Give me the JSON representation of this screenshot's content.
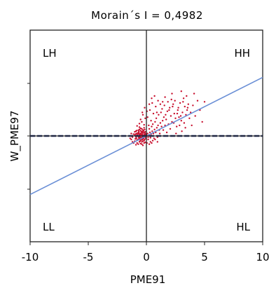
{
  "chart_data": {
    "type": "scatter",
    "title": "Morain´s I = 0,4982",
    "xlabel": "PME91",
    "ylabel": "W_PME97",
    "xlim": [
      -10,
      10
    ],
    "ylim": [
      -9,
      9
    ],
    "x_ticks": [
      "-10",
      "-5",
      "0",
      "5",
      "10"
    ],
    "quadrant_labels": {
      "top_left": "LH",
      "top_right": "HH",
      "bottom_left": "LL",
      "bottom_right": "HL"
    },
    "regression_line": {
      "slope": 0.4982,
      "intercept": 0
    },
    "mean_reference_line_y": 0,
    "colors": {
      "points": "#c8102e",
      "regression": "#6a8fd6",
      "reference": "#1f2f6e",
      "axes": "#222222"
    },
    "grid": false,
    "legend": "none",
    "points": [
      [
        -0.3,
        0.0
      ],
      [
        -0.5,
        -0.1
      ],
      [
        -0.2,
        0.1
      ],
      [
        -0.6,
        0.05
      ],
      [
        -0.4,
        -0.15
      ],
      [
        -0.1,
        0.0
      ],
      [
        -0.7,
        -0.05
      ],
      [
        -0.35,
        0.12
      ],
      [
        -0.55,
        0.15
      ],
      [
        -0.25,
        -0.2
      ],
      [
        -0.45,
        0.08
      ],
      [
        -0.15,
        -0.08
      ],
      [
        -0.65,
        0.18
      ],
      [
        -0.8,
        0.1
      ],
      [
        -0.3,
        -0.25
      ],
      [
        -0.5,
        0.22
      ],
      [
        -0.2,
        0.28
      ],
      [
        -0.4,
        0.3
      ],
      [
        -0.6,
        -0.2
      ],
      [
        -0.75,
        0.25
      ],
      [
        -0.1,
        0.18
      ],
      [
        -0.9,
        -0.1
      ],
      [
        -0.35,
        0.35
      ],
      [
        -0.55,
        -0.3
      ],
      [
        -0.05,
        0.05
      ],
      [
        -0.45,
        -0.35
      ],
      [
        -0.65,
        0.38
      ],
      [
        -0.25,
        0.42
      ],
      [
        -0.85,
        0.2
      ],
      [
        -0.15,
        -0.3
      ],
      [
        -1.0,
        0.05
      ],
      [
        -0.7,
        -0.3
      ],
      [
        -0.3,
        0.5
      ],
      [
        -0.5,
        0.45
      ],
      [
        -0.2,
        -0.4
      ],
      [
        -0.95,
        -0.25
      ],
      [
        -0.4,
        0.6
      ],
      [
        -0.6,
        0.55
      ],
      [
        -0.1,
        0.35
      ],
      [
        -0.8,
        -0.35
      ],
      [
        -1.1,
        0.15
      ],
      [
        -0.3,
        -0.45
      ],
      [
        -0.5,
        0.65
      ],
      [
        -0.7,
        0.48
      ],
      [
        -0.2,
        0.7
      ],
      [
        -1.2,
        -0.1
      ],
      [
        -0.9,
        0.4
      ],
      [
        -0.4,
        -0.5
      ],
      [
        -0.6,
        0.75
      ],
      [
        -0.15,
        0.55
      ],
      [
        0.0,
        0.1
      ],
      [
        0.1,
        0.2
      ],
      [
        0.2,
        0.05
      ],
      [
        0.3,
        0.3
      ],
      [
        0.15,
        -0.1
      ],
      [
        0.4,
        0.15
      ],
      [
        0.5,
        0.4
      ],
      [
        0.25,
        0.6
      ],
      [
        0.6,
        0.2
      ],
      [
        0.35,
        -0.15
      ],
      [
        0.7,
        0.55
      ],
      [
        0.45,
        0.8
      ],
      [
        0.8,
        0.3
      ],
      [
        0.55,
        1.0
      ],
      [
        0.9,
        0.7
      ],
      [
        0.65,
        -0.2
      ],
      [
        1.0,
        0.9
      ],
      [
        0.75,
        1.2
      ],
      [
        1.1,
        0.5
      ],
      [
        0.85,
        1.5
      ],
      [
        1.2,
        1.1
      ],
      [
        0.95,
        -0.1
      ],
      [
        1.3,
        0.8
      ],
      [
        1.05,
        1.8
      ],
      [
        1.4,
        1.3
      ],
      [
        1.15,
        0.2
      ],
      [
        1.5,
        1.6
      ],
      [
        1.25,
        2.0
      ],
      [
        1.6,
        0.9
      ],
      [
        1.35,
        2.3
      ],
      [
        1.7,
        1.4
      ],
      [
        1.45,
        0.5
      ],
      [
        1.8,
        2.1
      ],
      [
        1.55,
        2.6
      ],
      [
        1.9,
        1.0
      ],
      [
        1.65,
        1.8
      ],
      [
        2.0,
        2.4
      ],
      [
        1.75,
        0.3
      ],
      [
        2.1,
        1.7
      ],
      [
        1.85,
        2.9
      ],
      [
        2.2,
        1.2
      ],
      [
        1.95,
        2.2
      ],
      [
        2.3,
        2.7
      ],
      [
        2.05,
        0.6
      ],
      [
        2.4,
        1.9
      ],
      [
        2.15,
        3.1
      ],
      [
        2.5,
        1.5
      ],
      [
        2.25,
        2.5
      ],
      [
        2.6,
        0.8
      ],
      [
        2.35,
        1.1
      ],
      [
        2.7,
        2.2
      ],
      [
        2.45,
        3.0
      ],
      [
        2.8,
        1.6
      ],
      [
        2.55,
        0.2
      ],
      [
        2.9,
        2.8
      ],
      [
        2.65,
        1.9
      ],
      [
        3.0,
        1.3
      ],
      [
        2.75,
        2.4
      ],
      [
        3.1,
        2.0
      ],
      [
        2.85,
        0.9
      ],
      [
        3.2,
        3.2
      ],
      [
        2.95,
        1.7
      ],
      [
        3.3,
        2.5
      ],
      [
        3.05,
        0.4
      ],
      [
        3.4,
        1.8
      ],
      [
        3.15,
        2.9
      ],
      [
        3.5,
        2.2
      ],
      [
        3.25,
        1.1
      ],
      [
        3.6,
        2.7
      ],
      [
        3.35,
        0.7
      ],
      [
        3.7,
        1.5
      ],
      [
        3.45,
        3.4
      ],
      [
        3.8,
        2.0
      ],
      [
        3.55,
        2.4
      ],
      [
        3.9,
        0.9
      ],
      [
        4.0,
        2.6
      ],
      [
        4.2,
        1.7
      ],
      [
        4.4,
        3.0
      ],
      [
        4.6,
        2.2
      ],
      [
        4.8,
        1.2
      ],
      [
        5.0,
        2.9
      ],
      [
        3.0,
        3.8
      ],
      [
        2.2,
        3.6
      ],
      [
        1.6,
        3.3
      ],
      [
        4.1,
        3.6
      ],
      [
        2.7,
        0.0
      ],
      [
        0.2,
        0.9
      ],
      [
        0.4,
        1.3
      ],
      [
        0.1,
        1.6
      ],
      [
        0.6,
        1.9
      ],
      [
        0.3,
        2.2
      ],
      [
        0.8,
        2.5
      ],
      [
        0.5,
        2.8
      ],
      [
        1.0,
        3.0
      ],
      [
        0.7,
        3.4
      ],
      [
        1.2,
        2.7
      ],
      [
        0.9,
        2.0
      ],
      [
        1.4,
        2.9
      ],
      [
        -0.2,
        0.95
      ],
      [
        -0.4,
        1.2
      ],
      [
        -0.1,
        1.5
      ],
      [
        -0.6,
        1.05
      ],
      [
        -0.3,
        1.8
      ],
      [
        -0.8,
        0.85
      ],
      [
        -0.5,
        1.4
      ],
      [
        0.05,
        2.1
      ],
      [
        -0.15,
        2.4
      ],
      [
        0.25,
        2.7
      ],
      [
        -0.35,
        2.0
      ],
      [
        0.45,
        3.2
      ],
      [
        0.15,
        -0.3
      ],
      [
        0.35,
        -0.5
      ],
      [
        0.05,
        -0.6
      ],
      [
        0.55,
        -0.4
      ],
      [
        0.25,
        -0.7
      ],
      [
        0.75,
        -0.3
      ],
      [
        0.45,
        -0.6
      ],
      [
        0.95,
        -0.5
      ],
      [
        -0.2,
        -0.6
      ],
      [
        -0.4,
        -0.7
      ],
      [
        -0.1,
        -0.55
      ],
      [
        -0.6,
        -0.5
      ],
      [
        -0.3,
        -0.8
      ],
      [
        -0.8,
        -0.6
      ],
      [
        -0.5,
        -0.65
      ],
      [
        -1.0,
        -0.45
      ],
      [
        -0.7,
        -0.7
      ],
      [
        -1.2,
        -0.5
      ],
      [
        -0.9,
        -0.75
      ],
      [
        -1.3,
        -0.3
      ],
      [
        -1.1,
        -0.6
      ],
      [
        -1.4,
        -0.2
      ],
      [
        -1.0,
        0.35
      ],
      [
        -1.3,
        0.2
      ],
      [
        -0.25,
        0.45
      ],
      [
        -0.45,
        0.4
      ],
      [
        -0.65,
        0.3
      ],
      [
        -0.85,
        0.45
      ],
      [
        -0.05,
        -0.2
      ],
      [
        -0.15,
        0.25
      ],
      [
        -0.55,
        -0.45
      ],
      [
        -0.75,
        0.05
      ],
      [
        -0.35,
        -0.05
      ],
      [
        -0.95,
        0.15
      ],
      [
        -0.2,
        -0.05
      ],
      [
        -0.45,
        0.2
      ],
      [
        -0.6,
        -0.1
      ],
      [
        -0.3,
        0.25
      ],
      [
        -0.5,
        -0.2
      ],
      [
        -0.7,
        0.2
      ],
      [
        -0.4,
        0.05
      ],
      [
        -0.25,
        -0.15
      ],
      [
        -0.55,
        0.1
      ],
      [
        -0.35,
        -0.3
      ],
      [
        -0.15,
        0.1
      ],
      [
        -0.65,
        -0.15
      ],
      [
        -0.85,
        -0.2
      ],
      [
        -0.1,
        -0.1
      ]
    ]
  }
}
